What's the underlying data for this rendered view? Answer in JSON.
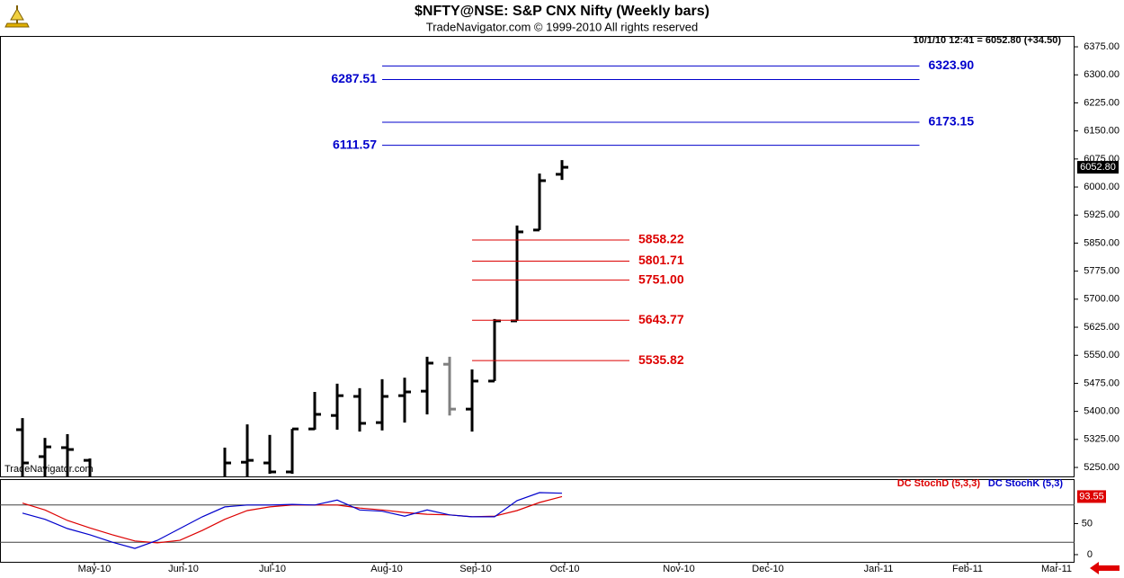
{
  "title": "$NFTY@NSE:  S&P CNX Nifty  (Weekly bars)",
  "subtitle": "TradeNavigator.com © 1999-2010 All rights reserved",
  "chart_data": [
    {
      "type": "ohlc",
      "quote": "10/1/10 12:41 = 6052.80 (+34.50)",
      "watermark": "TradeNavigator.com",
      "x": [
        1,
        2,
        3,
        4,
        10,
        11,
        12,
        13,
        14,
        15,
        16,
        17,
        18,
        19,
        20,
        21,
        22,
        23,
        24,
        25
      ],
      "open": [
        5351,
        5279,
        5303,
        5269,
        5220,
        5264,
        5262,
        5238,
        5353,
        5389,
        5440,
        5370,
        5442,
        5454,
        5526,
        5406,
        5481,
        5642,
        5885,
        6034
      ],
      "high": [
        5382,
        5329,
        5339,
        5274,
        5303,
        5365,
        5337,
        5353,
        5452,
        5474,
        5462,
        5486,
        5490,
        5546,
        5546,
        5512,
        5647,
        5897,
        6036,
        6072
      ],
      "low": [
        5200,
        5200,
        5200,
        5200,
        5200,
        5200,
        5233,
        5233,
        5351,
        5351,
        5346,
        5349,
        5370,
        5392,
        5389,
        5346,
        5481,
        5642,
        5885,
        6019
      ],
      "close": [
        5262,
        5305,
        5298,
        5220,
        5262,
        5269,
        5238,
        5353,
        5392,
        5442,
        5368,
        5440,
        5452,
        5529,
        5406,
        5481,
        5642,
        5880,
        6017,
        6052.8
      ],
      "close_label": "6052.80",
      "bar_colors": [
        "#000000",
        "#000000",
        "#000000",
        "#000000",
        "#000000",
        "#000000",
        "#000000",
        "#000000",
        "#000000",
        "#000000",
        "#000000",
        "#000000",
        "#000000",
        "#000000",
        "#808080",
        "#000000",
        "#000000",
        "#000000",
        "#000000",
        "#000000"
      ],
      "levels": [
        {
          "value": 6323.9,
          "label": "6323.90",
          "color": "#0000cc",
          "label_side": "right",
          "from": 17,
          "to": 40.9
        },
        {
          "value": 6287.51,
          "label": "6287.51",
          "color": "#0000cc",
          "label_side": "left",
          "from": 17,
          "to": 40.9
        },
        {
          "value": 6173.15,
          "label": "6173.15",
          "color": "#0000cc",
          "label_side": "right",
          "from": 17,
          "to": 40.9
        },
        {
          "value": 6111.57,
          "label": "6111.57",
          "color": "#0000cc",
          "label_side": "left",
          "from": 17,
          "to": 40.9
        },
        {
          "value": 5858.22,
          "label": "5858.22",
          "color": "#dd0000",
          "label_side": "right",
          "from": 21,
          "to": 28
        },
        {
          "value": 5801.71,
          "label": "5801.71",
          "color": "#dd0000",
          "label_side": "right",
          "from": 21,
          "to": 28
        },
        {
          "value": 5751,
          "label": "5751.00",
          "color": "#dd0000",
          "label_side": "right",
          "from": 21,
          "to": 28
        },
        {
          "value": 5643.77,
          "label": "5643.77",
          "color": "#dd0000",
          "label_side": "right",
          "from": 21,
          "to": 28
        },
        {
          "value": 5535.82,
          "label": "5535.82",
          "color": "#dd0000",
          "label_side": "right",
          "from": 21,
          "to": 28
        }
      ],
      "xlim": [
        0,
        47.8
      ],
      "ylim": [
        5226,
        6404
      ],
      "yticks": [
        {
          "value": 5250,
          "label": "5250.00"
        },
        {
          "value": 5325,
          "label": "5325.00"
        },
        {
          "value": 5400,
          "label": "5400.00"
        },
        {
          "value": 5475,
          "label": "5475.00"
        },
        {
          "value": 5550,
          "label": "5550.00"
        },
        {
          "value": 5625,
          "label": "5625.00"
        },
        {
          "value": 5700,
          "label": "5700.00"
        },
        {
          "value": 5775,
          "label": "5775.00"
        },
        {
          "value": 5850,
          "label": "5850.00"
        },
        {
          "value": 5925,
          "label": "5925.00"
        },
        {
          "value": 6000,
          "label": "6000.00"
        },
        {
          "value": 6075,
          "label": "6075.00"
        },
        {
          "value": 6150,
          "label": "6150.00"
        },
        {
          "value": 6225,
          "label": "6225.00"
        },
        {
          "value": 6300,
          "label": "6300.00"
        },
        {
          "value": 6375,
          "label": "6375.00"
        }
      ]
    },
    {
      "type": "line",
      "x": [
        1,
        2,
        3,
        4,
        5,
        6,
        7,
        8,
        9,
        10,
        11,
        12,
        13,
        14,
        15,
        16,
        17,
        18,
        19,
        20,
        21,
        22,
        23,
        24,
        25
      ],
      "series": [
        {
          "name": "DC StochD (5,3,3)",
          "color": "#dd0000",
          "values": [
            83,
            72,
            55,
            43,
            32,
            22,
            19,
            23,
            39,
            57,
            71,
            77,
            80,
            80,
            80,
            75,
            72,
            68,
            65,
            64,
            61,
            62,
            71,
            84,
            93.55
          ]
        },
        {
          "name": "DC StochK (5,3)",
          "color": "#0000cc",
          "values": [
            67,
            57,
            42,
            32,
            20,
            10,
            23,
            42,
            61,
            77,
            80,
            80,
            81,
            80,
            88,
            72,
            70,
            62,
            72,
            64,
            61,
            61,
            87,
            100,
            99
          ]
        }
      ],
      "reference_lines": [
        80,
        20
      ],
      "xlim": [
        0,
        47.8
      ],
      "ylim": [
        -11.6,
        121.7
      ],
      "yticks": [
        0,
        50
      ],
      "xticks": [
        {
          "value": 4.2,
          "label": "May-10"
        },
        {
          "value": 8.16,
          "label": "Jun-10"
        },
        {
          "value": 12.12,
          "label": "Jul-10"
        },
        {
          "value": 17.2,
          "label": "Aug-10"
        },
        {
          "value": 21.16,
          "label": "Sep-10"
        },
        {
          "value": 25.12,
          "label": "Oct-10"
        },
        {
          "value": 30.2,
          "label": "Nov-10"
        },
        {
          "value": 34.16,
          "label": "Dec-10"
        },
        {
          "value": 39.08,
          "label": "Jan-11"
        },
        {
          "value": 43.04,
          "label": "Feb-11"
        },
        {
          "value": 47.0,
          "label": "Mar-11"
        }
      ]
    }
  ]
}
